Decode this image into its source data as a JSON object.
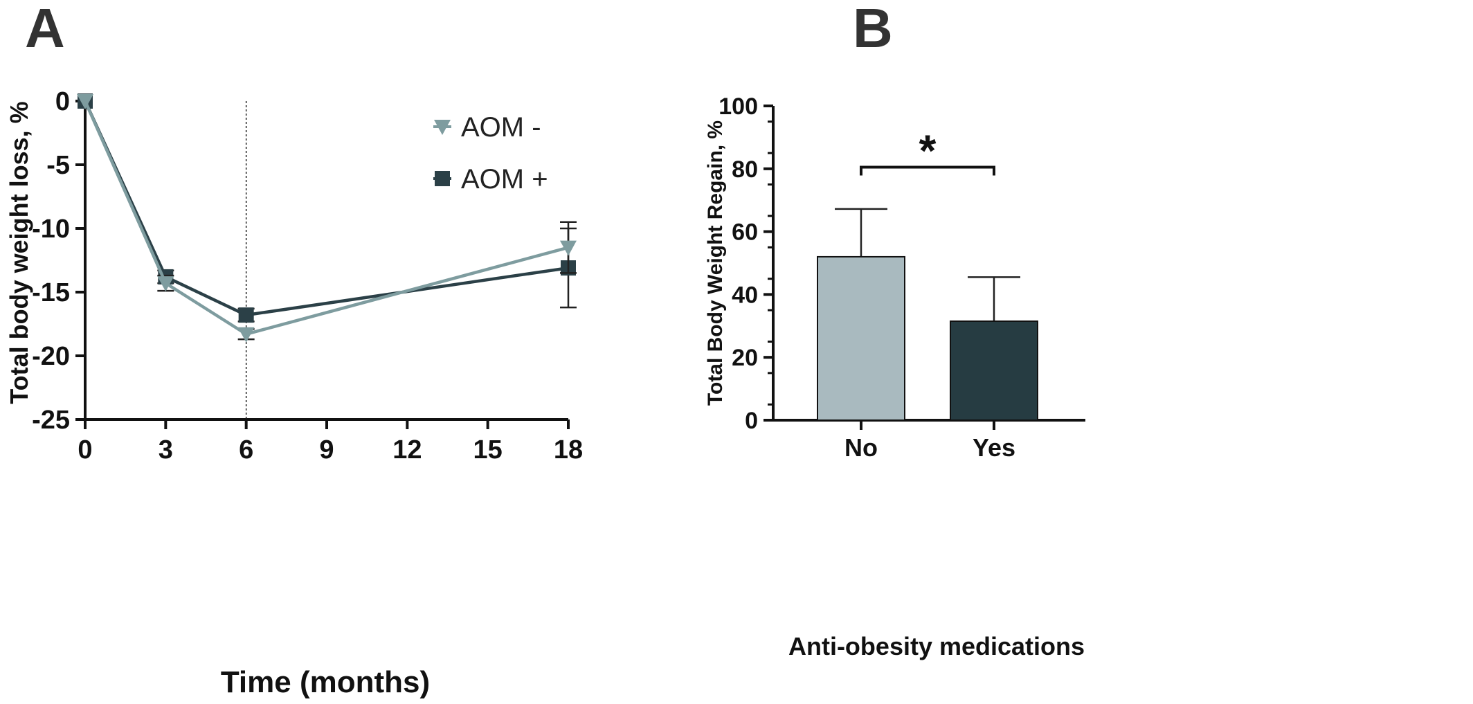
{
  "chart_data": [
    {
      "panel_label": "A",
      "type": "line",
      "xlabel": "Time (months)",
      "ylabel": "Total body weight loss, %",
      "xlim": [
        0,
        18
      ],
      "ylim": [
        -25,
        0
      ],
      "x_ticks": [
        0,
        3,
        6,
        9,
        12,
        15,
        18
      ],
      "y_ticks": [
        0,
        -5,
        -10,
        -15,
        -20,
        -25
      ],
      "x_tick_labels": [
        "0",
        "3",
        "6",
        "9",
        "12",
        "15",
        "18"
      ],
      "y_tick_labels": [
        "0",
        "-5",
        "-10",
        "-15",
        "-20",
        "-25"
      ],
      "reference_line_x": 6,
      "legend_position": "top-right",
      "grid": false,
      "series": [
        {
          "name": "AOM -",
          "marker": "triangle-down",
          "color": "#7e9c9f",
          "x": [
            0,
            3,
            6,
            18
          ],
          "values": [
            0,
            -14.3,
            -18.3,
            -11.5
          ],
          "error": [
            0,
            0.6,
            0.4,
            2.0
          ]
        },
        {
          "name": "AOM +",
          "marker": "square",
          "color": "#2b4047",
          "x": [
            0,
            3,
            6,
            18
          ],
          "values": [
            0,
            -13.8,
            -16.8,
            -13.1
          ],
          "error": [
            0,
            0.5,
            0.5,
            3.1
          ]
        }
      ]
    },
    {
      "panel_label": "B",
      "type": "bar",
      "xlabel": "Anti-obesity medications",
      "ylabel": "Total Body Weight Regain, %",
      "ylim": [
        0,
        100
      ],
      "y_ticks": [
        0,
        20,
        40,
        60,
        80,
        100
      ],
      "y_tick_labels": [
        "0",
        "20",
        "40",
        "60",
        "80",
        "100"
      ],
      "categories": [
        "No",
        "Yes"
      ],
      "values": [
        52,
        31.5
      ],
      "error": [
        15.2,
        14
      ],
      "colors": [
        "#a9babf",
        "#263c42"
      ],
      "significance_label": "*",
      "grid": false
    }
  ]
}
